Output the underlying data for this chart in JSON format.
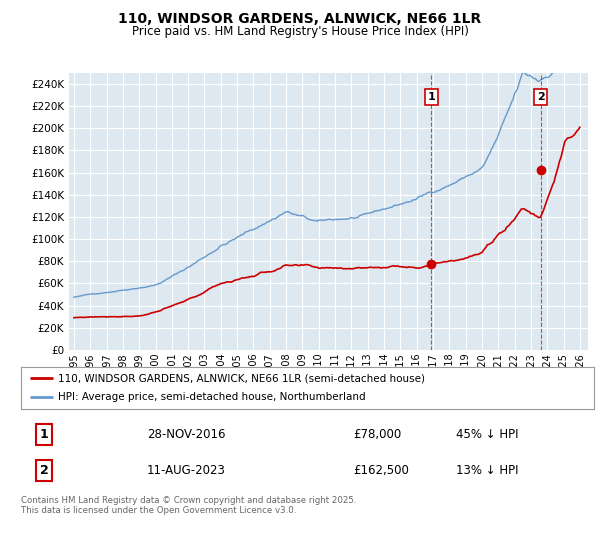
{
  "title": "110, WINDSOR GARDENS, ALNWICK, NE66 1LR",
  "subtitle": "Price paid vs. HM Land Registry's House Price Index (HPI)",
  "ylabel_ticks": [
    "£0",
    "£20K",
    "£40K",
    "£60K",
    "£80K",
    "£100K",
    "£120K",
    "£140K",
    "£160K",
    "£180K",
    "£200K",
    "£220K",
    "£240K"
  ],
  "ytick_values": [
    0,
    20000,
    40000,
    60000,
    80000,
    100000,
    120000,
    140000,
    160000,
    180000,
    200000,
    220000,
    240000
  ],
  "ylim": [
    0,
    250000
  ],
  "xlim_start": 1994.7,
  "xlim_end": 2026.5,
  "sale1_date_num": 2016.91,
  "sale1_price": 78000,
  "sale1_label": "1",
  "sale2_date_num": 2023.61,
  "sale2_price": 162500,
  "sale2_label": "2",
  "legend_line1": "110, WINDSOR GARDENS, ALNWICK, NE66 1LR (semi-detached house)",
  "legend_line2": "HPI: Average price, semi-detached house, Northumberland",
  "table_row1": [
    "1",
    "28-NOV-2016",
    "£78,000",
    "45% ↓ HPI"
  ],
  "table_row2": [
    "2",
    "11-AUG-2023",
    "£162,500",
    "13% ↓ HPI"
  ],
  "copyright": "Contains HM Land Registry data © Crown copyright and database right 2025.\nThis data is licensed under the Open Government Licence v3.0.",
  "red_color": "#cc0000",
  "blue_color": "#6699cc",
  "plot_bg_color": "#dde8f0",
  "grid_color": "#ffffff"
}
